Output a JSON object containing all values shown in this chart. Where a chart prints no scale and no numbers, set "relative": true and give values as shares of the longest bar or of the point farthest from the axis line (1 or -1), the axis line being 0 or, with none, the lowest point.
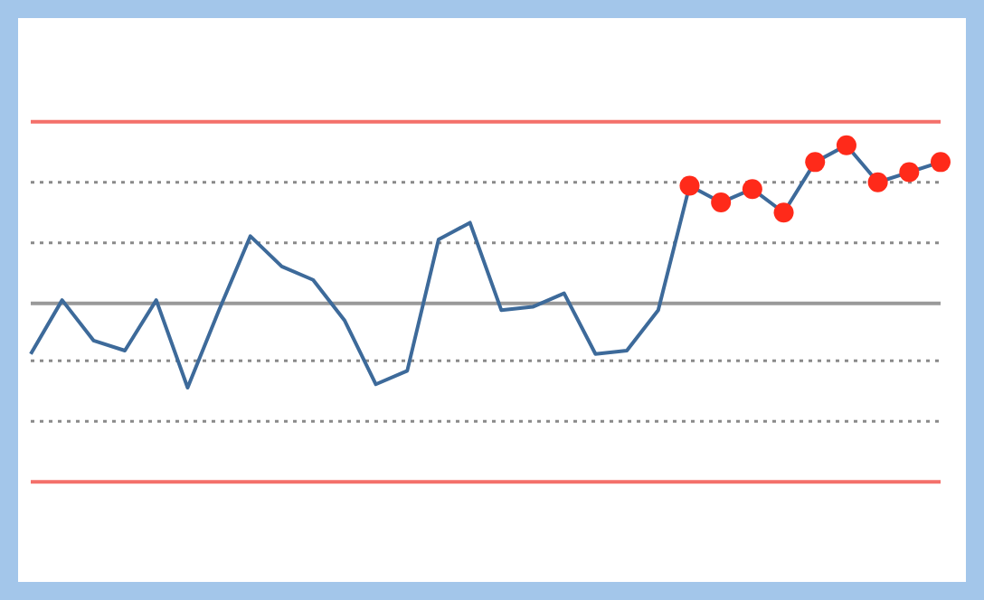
{
  "chart_data": {
    "type": "line",
    "relative": true,
    "categories": [
      null,
      null,
      null,
      null,
      null,
      null,
      null,
      null,
      null,
      null,
      null,
      null,
      null,
      null,
      null,
      null,
      null,
      null,
      null,
      null,
      null,
      null,
      null,
      null,
      null,
      null,
      null,
      null,
      null,
      null
    ],
    "series": [
      {
        "color": "#3d6a9a",
        "colors": [
          null,
          null,
          null,
          null,
          null,
          null,
          null,
          null,
          null,
          null,
          null,
          null,
          null,
          null,
          null,
          null,
          null,
          null,
          null,
          null,
          null,
          "#ff2a1a",
          "#ff2a1a",
          "#ff2a1a",
          "#ff2a1a",
          "#ff2a1a",
          "#ff2a1a",
          "#ff2a1a",
          "#ff2a1a",
          "#ff2a1a"
        ],
        "values": [
          0.38,
          0.54,
          0.42,
          0.39,
          0.54,
          0.28,
          0.51,
          0.73,
          0.64,
          0.6,
          0.48,
          0.29,
          0.33,
          0.72,
          0.77,
          0.51,
          0.52,
          0.56,
          0.38,
          0.39,
          0.51,
          0.88,
          0.83,
          0.87,
          0.8,
          0.95,
          1,
          0.89,
          0.92,
          0.95
        ]
      }
    ],
    "ref_lines": [
      {
        "axis": "y",
        "value": 1.07,
        "color": "#f4706a",
        "line_style": "solid"
      },
      {
        "axis": "y",
        "value": 0.89,
        "color": "#8a8a8a",
        "line_style": "dotted"
      },
      {
        "axis": "y",
        "value": 0.71,
        "color": "#8a8a8a",
        "line_style": "dotted"
      },
      {
        "axis": "y",
        "value": 0.53,
        "color": "#999999",
        "line_style": "solid"
      },
      {
        "axis": "y",
        "value": 0.36,
        "color": "#8a8a8a",
        "line_style": "dotted"
      },
      {
        "axis": "y",
        "value": 0.18,
        "color": "#8a8a8a",
        "line_style": "dotted"
      },
      {
        "axis": "y",
        "value": 0,
        "color": "#f4706a",
        "line_style": "solid"
      }
    ]
  }
}
